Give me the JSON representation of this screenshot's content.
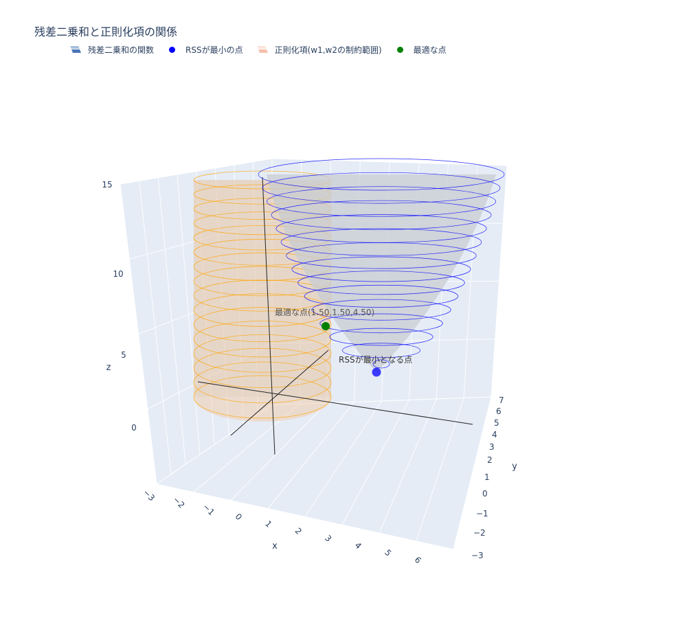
{
  "title": "残差二乗和と正則化項の関係",
  "legend": [
    {
      "label": "残差二乗和の関数",
      "kind": "surface",
      "colors": [
        "#4a76b6",
        "#a8c0dd"
      ]
    },
    {
      "label": "RSSが最小の点",
      "kind": "marker",
      "color": "#0000ff"
    },
    {
      "label": "正則化項(w1,w2の制約範囲)",
      "kind": "surface",
      "colors": [
        "#f4c0ac",
        "#fbe4da"
      ]
    },
    {
      "label": "最適な点",
      "kind": "marker",
      "color": "#008000"
    }
  ],
  "chart_data": {
    "type": "3d-surface",
    "axes": {
      "x": {
        "label": "x",
        "ticks": [
          "−3",
          "−2",
          "−1",
          "0",
          "1",
          "2",
          "3",
          "4",
          "5",
          "6"
        ]
      },
      "y": {
        "label": "y",
        "ticks": [
          "−3",
          "−2",
          "−1",
          "0",
          "1",
          "2",
          "3",
          "4",
          "5",
          "6",
          "7"
        ]
      },
      "z": {
        "label": "z",
        "ticks": [
          "0",
          "5",
          "10",
          "15"
        ],
        "range": [
          0,
          15
        ]
      }
    },
    "rss_surface": {
      "name": "残差二乗和の関数",
      "shape": "paraboloid",
      "center": [
        4,
        4
      ],
      "z_min": 0,
      "z_max": 15,
      "contour_color": "#0000ff",
      "levels": 15
    },
    "constraint_surface": {
      "name": "正則化項(w1,w2の制約範囲)",
      "shape": "cylinder",
      "center": [
        0,
        0
      ],
      "z_min": 0,
      "z_max": 15,
      "contour_color": "#ffa500",
      "levels": 16
    },
    "points": [
      {
        "name": "RSSが最小の点",
        "label": "RSSが最小となる点",
        "x": 4,
        "y": 4,
        "z": 0,
        "color": "#0000ff"
      },
      {
        "name": "最適な点",
        "label": "最適な点(1.50,1.50,4.50)",
        "x": 1.5,
        "y": 1.5,
        "z": 4.5,
        "color": "#008000"
      }
    ]
  }
}
